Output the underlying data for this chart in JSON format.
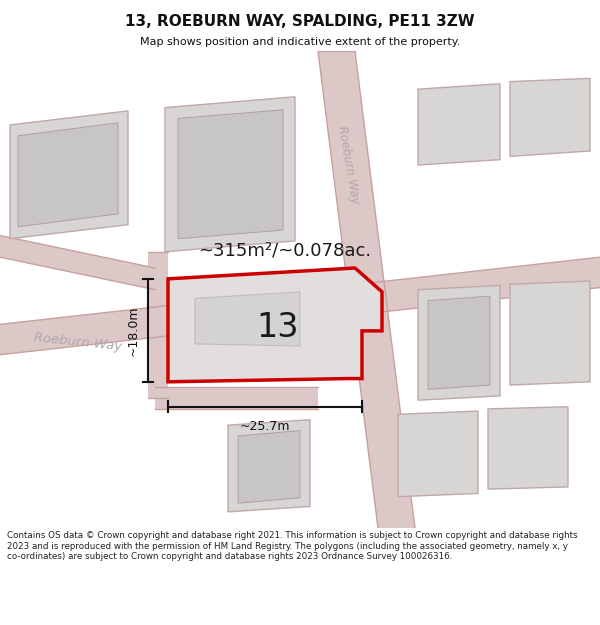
{
  "title": "13, ROEBURN WAY, SPALDING, PE11 3ZW",
  "subtitle": "Map shows position and indicative extent of the property.",
  "area_label": "~315m²/~0.078ac.",
  "number_label": "13",
  "dim_width": "~25.7m",
  "dim_height": "~18.0m",
  "street_label_h": "Roeburn Way",
  "street_label_v": "Roeburn Way",
  "footer": "Contains OS data © Crown copyright and database right 2021. This information is subject to Crown copyright and database rights 2023 and is reproduced with the permission of HM Land Registry. The polygons (including the associated geometry, namely x, y co-ordinates) are subject to Crown copyright and database rights 2023 Ordnance Survey 100026316.",
  "map_bg": "#eeecec",
  "road_fill": "#ddc8c8",
  "road_edge": "#c8a0a0",
  "bldg_outer_fill": "#d8d5d5",
  "bldg_outer_edge": "#c0a8a8",
  "bldg_inner_fill": "#c8c5c5",
  "bldg_inner_edge": "#b0a0a0",
  "plot_fill": "#e2dede",
  "plot_stroke": "#cc0000",
  "dim_color": "#111111",
  "street_color": "#b0a8a8",
  "title_color": "#111111",
  "footer_color": "#222222",
  "white": "#ffffff",
  "divider": "#cccccc"
}
